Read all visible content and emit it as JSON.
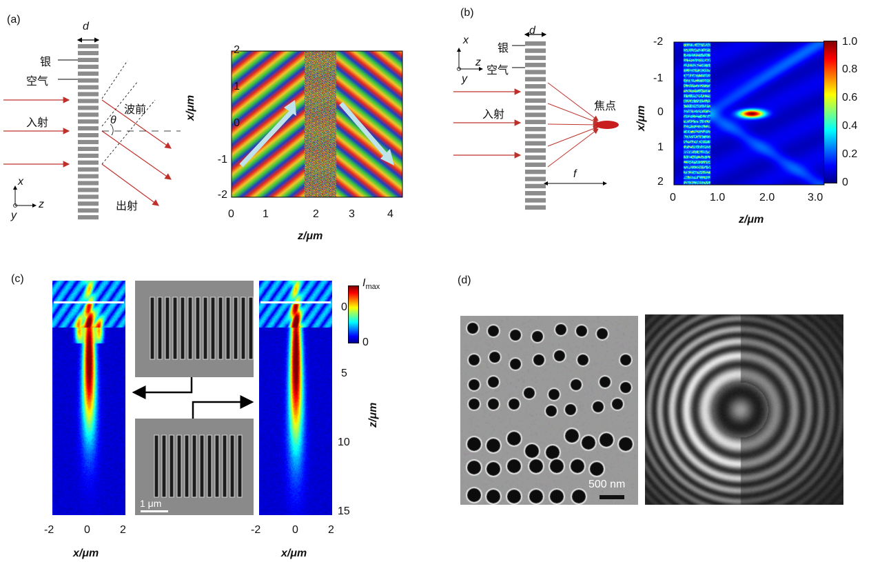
{
  "panels": {
    "a": {
      "label": "(a)"
    },
    "b": {
      "label": "(b)"
    },
    "c": {
      "label": "(c)"
    },
    "d": {
      "label": "(d)"
    }
  },
  "panel_a": {
    "d_label": "d",
    "silver_label": "银",
    "air_label": "空气",
    "incident_label": "入射",
    "wavefront_label": "波前",
    "theta_label": "θ",
    "outgoing_label": "出射",
    "axes": {
      "x": "x",
      "y": "y",
      "z": "z"
    },
    "plot_ylabel": "x/μm",
    "plot_xlabel": "z/μm",
    "plot_yticks": [
      "2",
      "1",
      "0",
      "-1",
      "-2"
    ],
    "plot_xticks": [
      "0",
      "1",
      "2",
      "3",
      "4"
    ]
  },
  "panel_b": {
    "d_label": "d",
    "silver_label": "银",
    "air_label": "空气",
    "incident_label": "入射",
    "focus_label": "焦点",
    "f_label": "f",
    "axes": {
      "x": "x",
      "y": "y",
      "z": "z"
    },
    "plot_ylabel": "x/μm",
    "plot_xlabel": "z/μm",
    "plot_yticks": [
      "-2",
      "-1",
      "0",
      "1",
      "2"
    ],
    "plot_xticks": [
      "0",
      "1.0",
      "2.0",
      "3.0"
    ],
    "colorbar_ticks": [
      "1.0",
      "0.8",
      "0.6",
      "0.4",
      "0.2",
      "0"
    ]
  },
  "panel_c": {
    "colorbar_top": "I",
    "colorbar_top_sub": "max",
    "colorbar_bottom": "0",
    "z_ticks": [
      "0",
      "5",
      "10",
      "15"
    ],
    "z_label": "z/μm",
    "x_ticks_left": [
      "-2",
      "0",
      "2"
    ],
    "x_ticks_right": [
      "-2",
      "0",
      "2"
    ],
    "x_label_left": "x/μm",
    "x_label_right": "x/μm",
    "scale_bar": "1 μm"
  },
  "panel_d": {
    "scale_bar": "500 nm"
  },
  "colors": {
    "arrow_red": "#c0302a",
    "grating_gray": "#8c8c8c",
    "jet_dark": "#1a2a8c"
  }
}
